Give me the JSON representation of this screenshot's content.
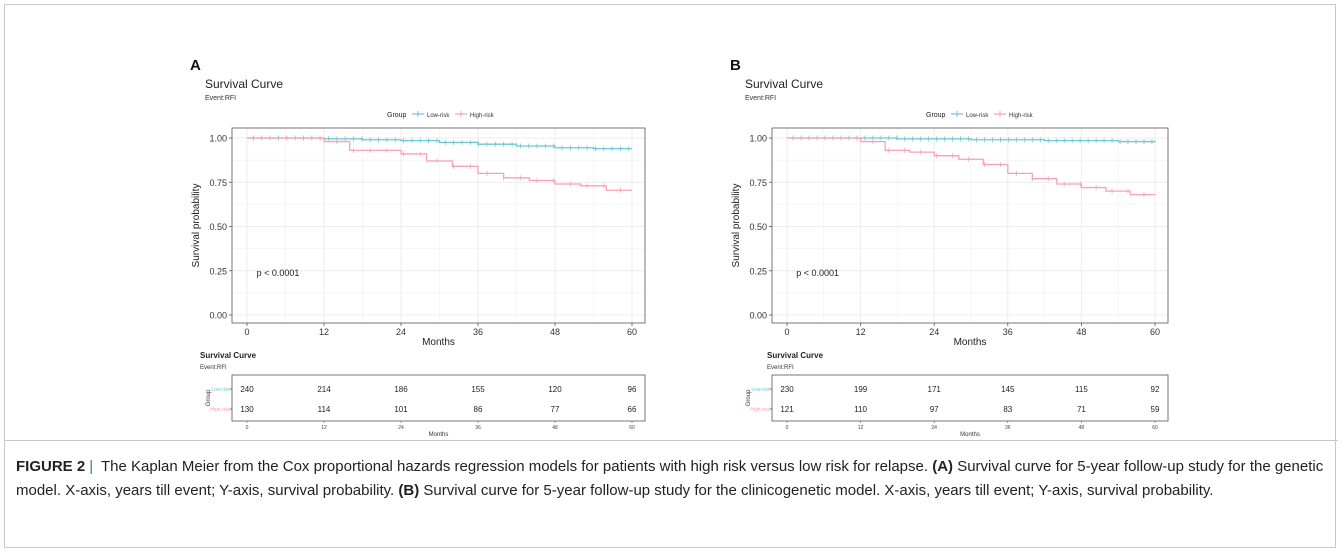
{
  "figure": {
    "caption_label": "FIGURE 2",
    "caption_sep": "|",
    "caption_text_1": "The Kaplan Meier from the Cox proportional hazards regression models for patients with high risk versus low risk for relapse.",
    "caption_a": "(A)",
    "caption_text_2": "Survival curve for 5-year follow-up study for the genetic model. X-axis, years till event; Y-axis, survival probability.",
    "caption_b": "(B)",
    "caption_text_3": "Survival curve for 5-year follow-up study for the clinicogenetic model. X-axis, years till event; Y-axis, survival probability."
  },
  "colors": {
    "low_risk": "#6fc6d3",
    "high_risk": "#f5a3b0",
    "grid": "#ececec",
    "border": "#555555"
  },
  "chart_data": [
    {
      "type": "line",
      "panel_label": "A",
      "title": "Survival Curve",
      "subtitle": "Event:RFI",
      "legend_title": "Group",
      "legend_position": "top",
      "xlabel": "Months",
      "ylabel": "Survival probability",
      "xlim": [
        0,
        60
      ],
      "ylim": [
        0,
        1
      ],
      "xticks": [
        "0",
        "12",
        "24",
        "36",
        "48",
        "60"
      ],
      "yticks": [
        "0.00",
        "0.25",
        "0.50",
        "0.75",
        "1.00"
      ],
      "annotation": "p < 0.0001",
      "grid": true,
      "series": [
        {
          "name": "Low-risk",
          "x": [
            0,
            6,
            12,
            18,
            24,
            30,
            36,
            42,
            48,
            54,
            60
          ],
          "y": [
            1.0,
            1.0,
            0.995,
            0.99,
            0.985,
            0.975,
            0.965,
            0.955,
            0.945,
            0.94,
            0.94
          ]
        },
        {
          "name": "High-risk",
          "x": [
            0,
            6,
            12,
            16,
            20,
            24,
            28,
            32,
            36,
            40,
            44,
            48,
            52,
            56,
            60
          ],
          "y": [
            1.0,
            1.0,
            0.98,
            0.93,
            0.93,
            0.91,
            0.87,
            0.84,
            0.8,
            0.775,
            0.76,
            0.74,
            0.73,
            0.705,
            0.705
          ]
        }
      ],
      "risk_table": {
        "title": "Survival Curve",
        "subtitle": "Event:RFI",
        "ylabel": "Group",
        "xlabel": "Months",
        "xticks": [
          "0",
          "12",
          "24",
          "36",
          "48",
          "60"
        ],
        "rows": [
          {
            "group": "Low-risk",
            "values": [
              "240",
              "214",
              "186",
              "155",
              "120",
              "96"
            ]
          },
          {
            "group": "High-risk",
            "values": [
              "130",
              "114",
              "101",
              "86",
              "77",
              "66"
            ]
          }
        ]
      }
    },
    {
      "type": "line",
      "panel_label": "B",
      "title": "Survival Curve",
      "subtitle": "Event:RFI",
      "legend_title": "Group",
      "legend_position": "top",
      "xlabel": "Months",
      "ylabel": "Survival probability",
      "xlim": [
        0,
        60
      ],
      "ylim": [
        0,
        1
      ],
      "xticks": [
        "0",
        "12",
        "24",
        "36",
        "48",
        "60"
      ],
      "yticks": [
        "0.00",
        "0.25",
        "0.50",
        "0.75",
        "1.00"
      ],
      "annotation": "p < 0.0001",
      "grid": true,
      "series": [
        {
          "name": "Low-risk",
          "x": [
            0,
            6,
            12,
            18,
            24,
            30,
            36,
            42,
            48,
            54,
            60
          ],
          "y": [
            1.0,
            1.0,
            1.0,
            0.995,
            0.995,
            0.99,
            0.99,
            0.985,
            0.985,
            0.98,
            0.975
          ]
        },
        {
          "name": "High-risk",
          "x": [
            0,
            6,
            12,
            16,
            20,
            24,
            28,
            32,
            36,
            40,
            44,
            48,
            52,
            56,
            60
          ],
          "y": [
            1.0,
            1.0,
            0.98,
            0.93,
            0.92,
            0.9,
            0.88,
            0.85,
            0.8,
            0.77,
            0.74,
            0.72,
            0.7,
            0.68,
            0.675
          ]
        }
      ],
      "risk_table": {
        "title": "Survival Curve",
        "subtitle": "Event:RFI",
        "ylabel": "Group",
        "xlabel": "Months",
        "xticks": [
          "0",
          "12",
          "24",
          "36",
          "48",
          "60"
        ],
        "rows": [
          {
            "group": "Low-risk",
            "values": [
              "230",
              "199",
              "171",
              "145",
              "115",
              "92"
            ]
          },
          {
            "group": "High-risk",
            "values": [
              "121",
              "110",
              "97",
              "83",
              "71",
              "59"
            ]
          }
        ]
      }
    }
  ]
}
